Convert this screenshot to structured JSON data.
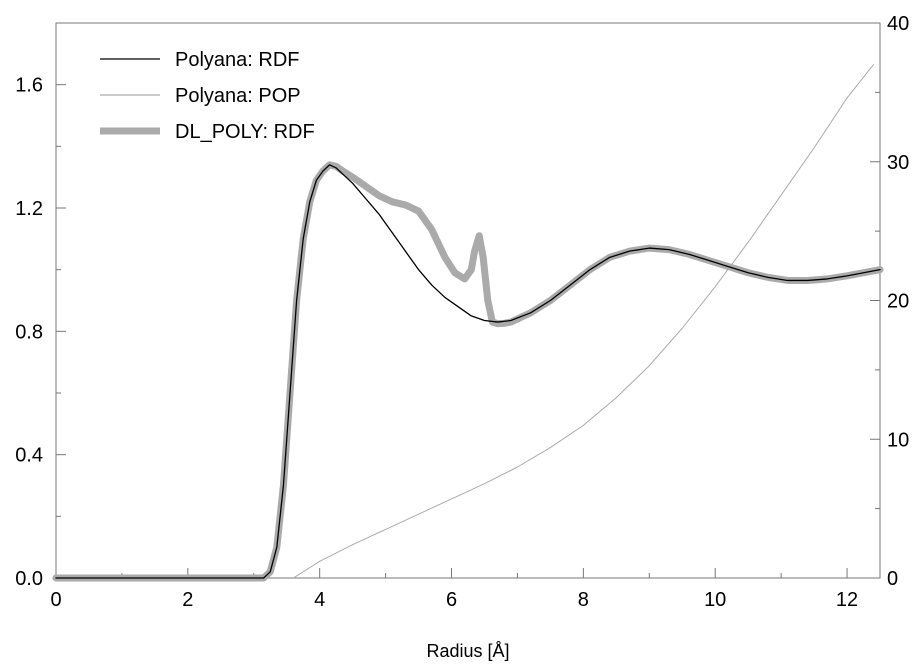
{
  "chart_data": {
    "type": "line",
    "title": "",
    "xlabel": "Radius [Å]",
    "ylabel": "",
    "y2label": "",
    "xlim": [
      0,
      12.5
    ],
    "ylim": [
      0,
      1.8
    ],
    "y2lim": [
      0,
      40
    ],
    "grid": false,
    "legend_position": "top-left",
    "x_ticks": [
      0,
      2,
      4,
      6,
      8,
      10,
      12
    ],
    "y_ticks": [
      0.0,
      0.4,
      0.8,
      1.2,
      1.6
    ],
    "y_tick_labels": [
      "0.0",
      "0.4",
      "0.8",
      "1.2",
      "1.6"
    ],
    "y2_ticks": [
      0,
      10,
      20,
      30,
      40
    ],
    "series": [
      {
        "name": "Polyana: RDF",
        "axis": "left",
        "color": "#000000",
        "style": "thin",
        "x": [
          0,
          1,
          2,
          3,
          3.15,
          3.25,
          3.35,
          3.45,
          3.55,
          3.65,
          3.75,
          3.85,
          3.95,
          4.05,
          4.15,
          4.25,
          4.35,
          4.5,
          4.7,
          4.9,
          5.1,
          5.3,
          5.5,
          5.7,
          5.9,
          6.1,
          6.3,
          6.5,
          6.7,
          6.9,
          7.2,
          7.5,
          7.8,
          8.1,
          8.4,
          8.7,
          9.0,
          9.3,
          9.6,
          9.9,
          10.2,
          10.5,
          10.8,
          11.1,
          11.4,
          11.7,
          12.0,
          12.5
        ],
        "y": [
          0,
          0,
          0,
          0,
          0.0,
          0.02,
          0.1,
          0.3,
          0.6,
          0.9,
          1.1,
          1.22,
          1.29,
          1.32,
          1.34,
          1.33,
          1.31,
          1.28,
          1.23,
          1.18,
          1.12,
          1.06,
          1.0,
          0.95,
          0.91,
          0.88,
          0.85,
          0.835,
          0.83,
          0.835,
          0.86,
          0.9,
          0.95,
          1.0,
          1.04,
          1.06,
          1.07,
          1.065,
          1.05,
          1.03,
          1.01,
          0.99,
          0.975,
          0.965,
          0.965,
          0.97,
          0.98,
          1.0
        ]
      },
      {
        "name": "Polyana: POP",
        "axis": "right",
        "color": "#aaaaaa",
        "style": "thin",
        "x": [
          3.6,
          4.0,
          4.5,
          5.0,
          5.5,
          6.0,
          6.5,
          7.0,
          7.5,
          8.0,
          8.5,
          9.0,
          9.5,
          10.0,
          10.5,
          11.0,
          11.5,
          12.0,
          12.4
        ],
        "y": [
          0,
          1.2,
          2.4,
          3.5,
          4.6,
          5.7,
          6.8,
          8.0,
          9.4,
          11.0,
          13.0,
          15.3,
          18.0,
          21.0,
          24.2,
          27.6,
          31.0,
          34.6,
          37.0
        ]
      },
      {
        "name": "DL_POLY: RDF",
        "axis": "left",
        "color": "#aaaaaa",
        "style": "thick",
        "x": [
          0,
          1,
          2,
          3,
          3.15,
          3.25,
          3.35,
          3.45,
          3.55,
          3.65,
          3.75,
          3.85,
          3.95,
          4.05,
          4.15,
          4.25,
          4.35,
          4.5,
          4.7,
          4.9,
          5.1,
          5.3,
          5.5,
          5.7,
          5.9,
          6.05,
          6.2,
          6.3,
          6.35,
          6.42,
          6.48,
          6.55,
          6.62,
          6.7,
          6.8,
          6.9,
          7.2,
          7.5,
          7.8,
          8.1,
          8.4,
          8.7,
          9.0,
          9.3,
          9.6,
          9.9,
          10.2,
          10.5,
          10.8,
          11.1,
          11.4,
          11.7,
          12.0,
          12.5
        ],
        "y": [
          0,
          0,
          0,
          0,
          0.0,
          0.02,
          0.1,
          0.3,
          0.6,
          0.9,
          1.1,
          1.22,
          1.29,
          1.32,
          1.34,
          1.335,
          1.32,
          1.3,
          1.27,
          1.24,
          1.22,
          1.21,
          1.19,
          1.13,
          1.04,
          0.99,
          0.97,
          1.0,
          1.06,
          1.11,
          1.04,
          0.9,
          0.83,
          0.825,
          0.826,
          0.83,
          0.86,
          0.9,
          0.95,
          1.0,
          1.04,
          1.06,
          1.07,
          1.065,
          1.05,
          1.03,
          1.01,
          0.99,
          0.975,
          0.965,
          0.965,
          0.97,
          0.98,
          1.0
        ]
      }
    ]
  }
}
